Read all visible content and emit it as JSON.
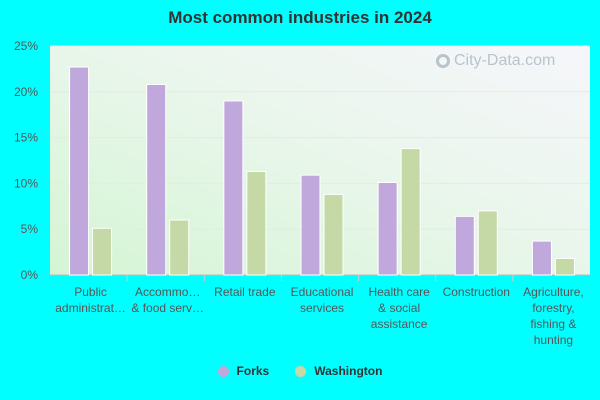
{
  "chart_data": {
    "type": "bar",
    "title": "Most common industries in 2024",
    "categories": [
      [
        "Public",
        "administrat…"
      ],
      [
        "Accommo…",
        "& food serv…"
      ],
      [
        "Retail trade"
      ],
      [
        "Educational",
        "services"
      ],
      [
        "Health care",
        "& social",
        "assistance"
      ],
      [
        "Construction"
      ],
      [
        "Agriculture,",
        "forestry,",
        "fishing &",
        "hunting"
      ]
    ],
    "series": [
      {
        "name": "Forks",
        "color": "#c0a8dc",
        "values": [
          22.7,
          20.8,
          19.0,
          10.9,
          10.1,
          6.4,
          3.7
        ]
      },
      {
        "name": "Washington",
        "color": "#c4d9a6",
        "values": [
          5.1,
          6.0,
          11.3,
          8.8,
          13.8,
          7.0,
          1.8
        ]
      }
    ],
    "ylim": [
      0,
      25
    ],
    "yticks": [
      0,
      5,
      10,
      15,
      20,
      25
    ],
    "ytick_labels": [
      "0%",
      "5%",
      "10%",
      "15%",
      "20%",
      "25%"
    ],
    "grid": true,
    "legend_position": "bottom",
    "watermark": "City-Data.com"
  }
}
